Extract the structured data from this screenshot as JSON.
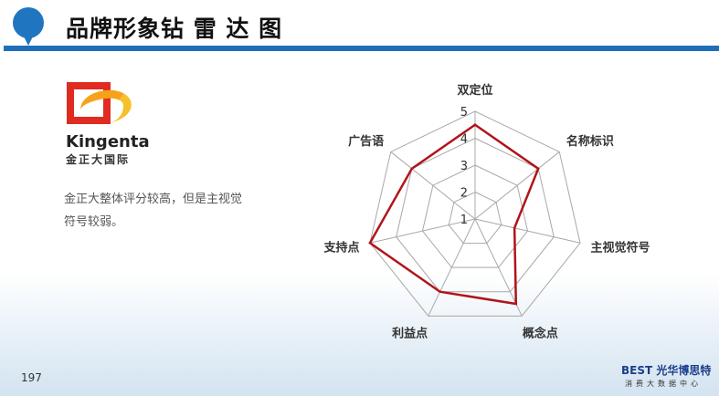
{
  "header": {
    "title": "品牌形象钻 雷 达 图"
  },
  "logo": {
    "name_en": "Kingenta",
    "name_cn": "金正大国际"
  },
  "description": "金正大整体评分较高，但是主视觉符号较弱。",
  "page_number": "197",
  "footer": {
    "brand": "BEST 光华博思特",
    "sub": "消费大数据中心"
  },
  "colors": {
    "accent": "#1f6fb8",
    "series": "#b0141a"
  },
  "chart_data": {
    "type": "radar",
    "categories": [
      "双定位",
      "名称标识",
      "主视觉符号",
      "概念点",
      "利益点",
      "支持点",
      "广告语"
    ],
    "values": [
      4.5,
      4,
      2.5,
      4.5,
      4,
      5,
      4
    ],
    "rlim": [
      1,
      5
    ],
    "ticks": [
      "1",
      "2",
      "3",
      "4",
      "5"
    ],
    "grid": true
  }
}
